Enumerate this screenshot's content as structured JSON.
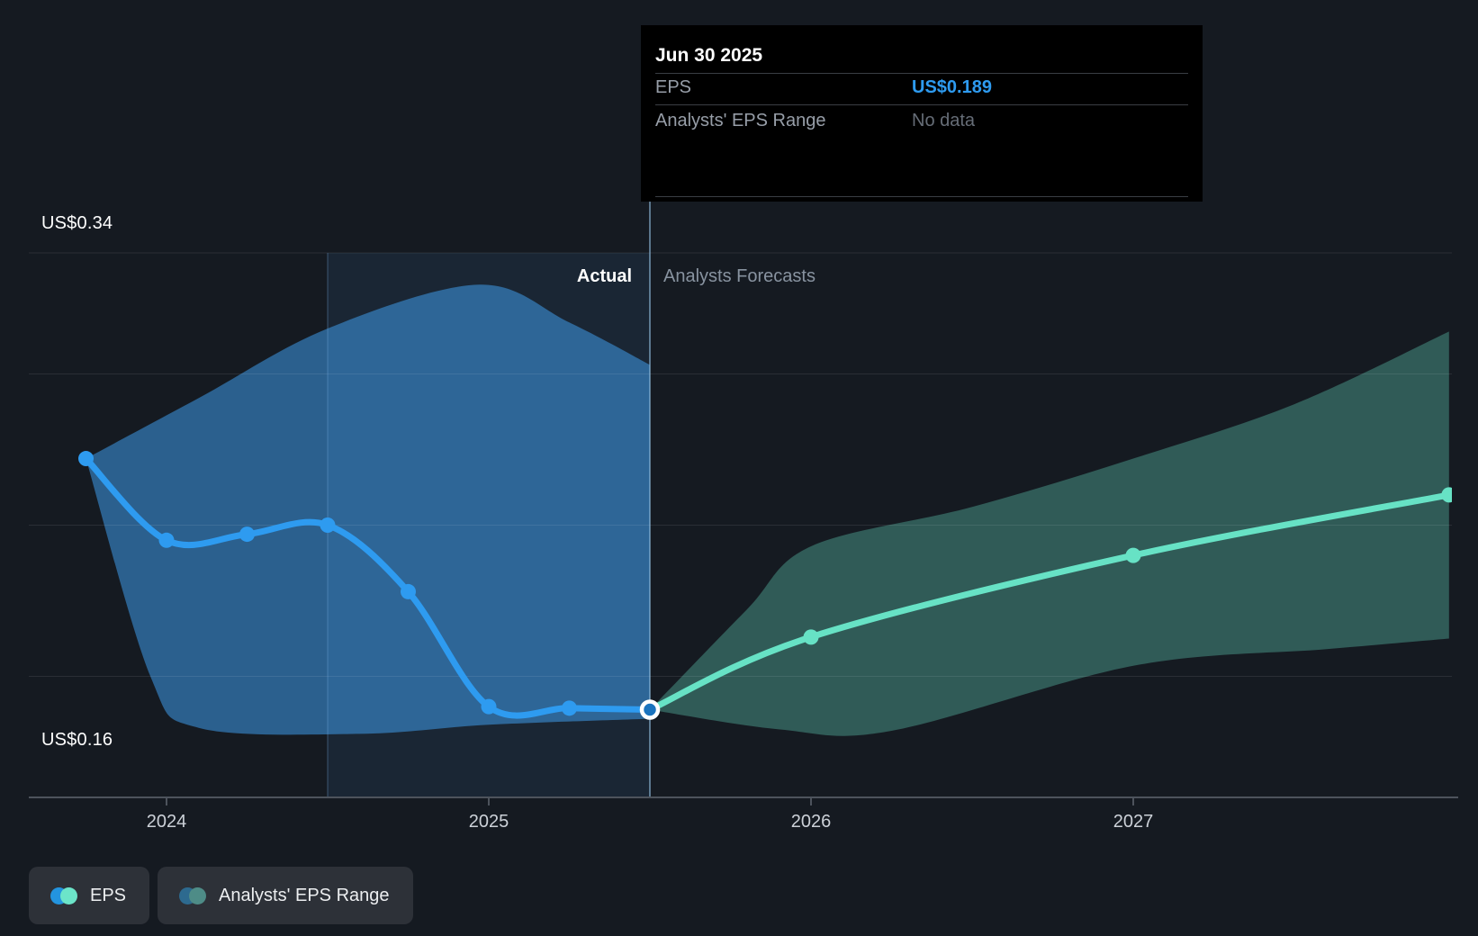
{
  "colors": {
    "background": "#151a21",
    "eps_blue": "#2e9bf0",
    "forecast_teal": "#67e2c5",
    "actual_range_fill": "rgba(57,140,210,0.62)",
    "forecast_range_fill": "rgba(103,226,197,0.33)",
    "highlight_band_fill": "rgba(80,170,240,0.09)",
    "gridline": "rgba(255,255,255,0.09)",
    "axis_line": "#4d535c",
    "divider_line": "rgba(150,195,230,0.55)",
    "band_edge_line": "rgba(120,170,220,0.28)",
    "tick_label": "#ccd1d8",
    "tooltip_bg": "#000000",
    "junction_dot_center": "#1a73be",
    "legend_muted_blue": "#2d6a8f",
    "legend_muted_teal": "#4e8c87"
  },
  "tooltip": {
    "date": "Jun 30 2025",
    "rows": [
      {
        "label": "EPS",
        "value": "US$0.189"
      },
      {
        "label": "Analysts' EPS Range",
        "value": "No data"
      }
    ]
  },
  "phase_labels": {
    "actual": "Actual",
    "forecast": "Analysts Forecasts"
  },
  "legend": [
    {
      "label": "EPS",
      "dot_colors": [
        "#2394df",
        "#6ce5c9"
      ]
    },
    {
      "label": "Analysts' EPS Range",
      "dot_colors": [
        "#2d6a8f",
        "#4e8c87"
      ]
    }
  ],
  "chart_data": {
    "type": "line",
    "title": "EPS actual and analyst forecast over time",
    "currency": "US$",
    "y_axis": {
      "top_label": "US$0.34",
      "bottom_label": "US$0.16",
      "max": 0.34,
      "min": 0.16,
      "gridline_values": [
        0.34,
        0.3,
        0.25,
        0.2
      ],
      "grid": true
    },
    "x_ticks": [
      {
        "label": "2024",
        "t": 2024
      },
      {
        "label": "2025",
        "t": 2025
      },
      {
        "label": "2026",
        "t": 2026
      },
      {
        "label": "2027",
        "t": 2027
      }
    ],
    "divider_t": 2025.5,
    "highlight_band": {
      "from_t": 2024.5,
      "to_t": 2025.5
    },
    "series": [
      {
        "name": "EPS",
        "points": [
          {
            "t": 2023.75,
            "v": 0.272
          },
          {
            "t": 2024.0,
            "v": 0.245
          },
          {
            "t": 2024.25,
            "v": 0.247
          },
          {
            "t": 2024.5,
            "v": 0.25
          },
          {
            "t": 2024.75,
            "v": 0.228
          },
          {
            "t": 2025.0,
            "v": 0.19
          },
          {
            "t": 2025.25,
            "v": 0.1895
          },
          {
            "t": 2025.5,
            "v": 0.189
          }
        ]
      },
      {
        "name": "EPS forecast",
        "points": [
          {
            "t": 2025.5,
            "v": 0.189
          },
          {
            "t": 2026.0,
            "v": 0.213
          },
          {
            "t": 2027.0,
            "v": 0.24
          },
          {
            "t": 2027.98,
            "v": 0.26
          }
        ]
      }
    ],
    "ranges": [
      {
        "name": "actual EPS range",
        "upper": [
          [
            2023.75,
            0.272
          ],
          [
            2024.1,
            0.292
          ],
          [
            2024.5,
            0.315
          ],
          [
            2024.97,
            0.3295
          ],
          [
            2025.25,
            0.317
          ],
          [
            2025.5,
            0.303
          ]
        ],
        "lower": [
          [
            2023.75,
            0.272
          ],
          [
            2023.95,
            0.2
          ],
          [
            2024.1,
            0.183
          ],
          [
            2024.6,
            0.181
          ],
          [
            2025.0,
            0.184
          ],
          [
            2025.5,
            0.186
          ]
        ]
      },
      {
        "name": "analysts EPS range",
        "upper": [
          [
            2025.5,
            0.189
          ],
          [
            2025.8,
            0.222
          ],
          [
            2026.0,
            0.243
          ],
          [
            2026.5,
            0.256
          ],
          [
            2027.0,
            0.272
          ],
          [
            2027.5,
            0.29
          ],
          [
            2027.98,
            0.314
          ]
        ],
        "lower": [
          [
            2025.5,
            0.189
          ],
          [
            2025.9,
            0.1825
          ],
          [
            2026.25,
            0.182
          ],
          [
            2027.0,
            0.2035
          ],
          [
            2027.6,
            0.209
          ],
          [
            2027.98,
            0.2125
          ]
        ]
      }
    ]
  }
}
